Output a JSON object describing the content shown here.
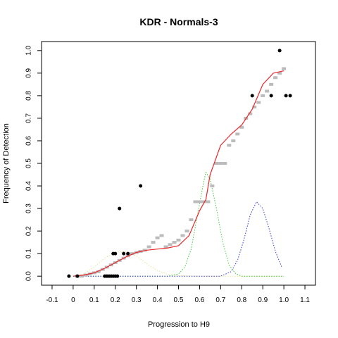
{
  "chart_data": {
    "type": "scatter",
    "title": "KDR - Normals-3",
    "xlabel": "Progression to H9",
    "ylabel": "Frequency of Detection",
    "xlim": [
      -0.15,
      1.15
    ],
    "ylim": [
      -0.04,
      1.04
    ],
    "x_ticks": [
      "-0.1",
      "0",
      "0.1",
      "0.2",
      "0.3",
      "0.4",
      "0.5",
      "0.6",
      "0.7",
      "0.8",
      "0.9",
      "1.0",
      "1.1"
    ],
    "x_tick_values": [
      -0.1,
      0,
      0.1,
      0.2,
      0.3,
      0.4,
      0.5,
      0.6,
      0.7,
      0.8,
      0.9,
      1.0,
      1.1
    ],
    "y_ticks": [
      "0.0",
      "0.1",
      "0.2",
      "0.3",
      "0.4",
      "0.5",
      "0.6",
      "0.7",
      "0.8",
      "0.9",
      "1.0"
    ],
    "y_tick_values": [
      0,
      0.1,
      0.2,
      0.3,
      0.4,
      0.5,
      0.6,
      0.7,
      0.8,
      0.9,
      1.0
    ],
    "colors": {
      "sample_points": "#000000",
      "smoothed_points": "#bbbbbb",
      "fit_curve": "#e8262b",
      "component_1": "#e6e69a",
      "component_2": "#3ac43a",
      "component_3": "#3b3bd6"
    },
    "series": [
      {
        "kind": "points",
        "color_key": "sample_points",
        "x": [
          -0.02,
          0.02,
          0.15,
          0.16,
          0.17,
          0.18,
          0.19,
          0.2,
          0.21,
          0.19,
          0.2,
          0.24,
          0.26,
          0.22,
          0.32,
          0.85,
          0.94,
          0.98,
          1.01,
          1.03
        ],
        "y": [
          0,
          0,
          0,
          0,
          0,
          0,
          0,
          0,
          0,
          0.1,
          0.1,
          0.1,
          0.1,
          0.3,
          0.4,
          0.8,
          0.8,
          1.0,
          0.8,
          0.8
        ]
      },
      {
        "kind": "points",
        "color_key": "smoothed_points",
        "x": [
          0.02,
          0.04,
          0.06,
          0.08,
          0.1,
          0.12,
          0.14,
          0.16,
          0.18,
          0.2,
          0.22,
          0.24,
          0.26,
          0.28,
          0.3,
          0.32,
          0.34,
          0.36,
          0.38,
          0.4,
          0.42,
          0.44,
          0.46,
          0.48,
          0.5,
          0.52,
          0.54,
          0.56,
          0.58,
          0.6,
          0.62,
          0.64,
          0.66,
          0.68,
          0.7,
          0.72,
          0.74,
          0.76,
          0.78,
          0.8,
          0.82,
          0.84,
          0.86,
          0.88,
          0.9,
          0.92,
          0.94,
          0.96,
          0.98,
          1.0
        ],
        "y": [
          0.0,
          0.0,
          0.005,
          0.01,
          0.015,
          0.02,
          0.03,
          0.04,
          0.05,
          0.06,
          0.07,
          0.08,
          0.09,
          0.1,
          0.105,
          0.11,
          0.115,
          0.13,
          0.15,
          0.17,
          0.18,
          0.13,
          0.14,
          0.15,
          0.16,
          0.18,
          0.2,
          0.25,
          0.33,
          0.33,
          0.33,
          0.33,
          0.4,
          0.5,
          0.5,
          0.5,
          0.58,
          0.6,
          0.63,
          0.66,
          0.7,
          0.72,
          0.75,
          0.77,
          0.8,
          0.82,
          0.85,
          0.88,
          0.9,
          0.92
        ]
      },
      {
        "kind": "line",
        "color_key": "fit_curve",
        "x": [
          0.0,
          0.05,
          0.1,
          0.15,
          0.2,
          0.25,
          0.3,
          0.35,
          0.4,
          0.45,
          0.5,
          0.55,
          0.6,
          0.63,
          0.65,
          0.7,
          0.75,
          0.8,
          0.85,
          0.9,
          0.95,
          1.0
        ],
        "y": [
          0.0,
          0.005,
          0.015,
          0.035,
          0.06,
          0.085,
          0.105,
          0.115,
          0.12,
          0.125,
          0.135,
          0.18,
          0.29,
          0.34,
          0.45,
          0.58,
          0.63,
          0.67,
          0.74,
          0.85,
          0.9,
          0.91
        ]
      },
      {
        "kind": "dotted",
        "color_key": "component_1",
        "x": [
          0.0,
          0.05,
          0.1,
          0.15,
          0.2,
          0.25,
          0.3,
          0.35,
          0.4,
          0.45,
          0.5,
          0.6,
          0.7,
          0.8,
          0.9,
          1.0
        ],
        "y": [
          0.0,
          0.01,
          0.04,
          0.08,
          0.105,
          0.11,
          0.09,
          0.055,
          0.025,
          0.008,
          0.002,
          0.0,
          0.0,
          0.0,
          0.0,
          0.0
        ]
      },
      {
        "kind": "dotted",
        "color_key": "component_2",
        "x": [
          0.0,
          0.45,
          0.5,
          0.53,
          0.56,
          0.59,
          0.62,
          0.63,
          0.65,
          0.68,
          0.71,
          0.74,
          0.77,
          0.8,
          1.0
        ],
        "y": [
          0.0,
          0.0,
          0.01,
          0.04,
          0.12,
          0.27,
          0.42,
          0.46,
          0.43,
          0.3,
          0.15,
          0.05,
          0.012,
          0.0,
          0.0
        ]
      },
      {
        "kind": "dotted",
        "color_key": "component_3",
        "x": [
          0.0,
          0.7,
          0.75,
          0.78,
          0.81,
          0.84,
          0.87,
          0.9,
          0.93,
          0.96,
          0.99
        ],
        "y": [
          0.0,
          0.0,
          0.02,
          0.07,
          0.16,
          0.27,
          0.33,
          0.3,
          0.21,
          0.11,
          0.04
        ]
      }
    ]
  }
}
